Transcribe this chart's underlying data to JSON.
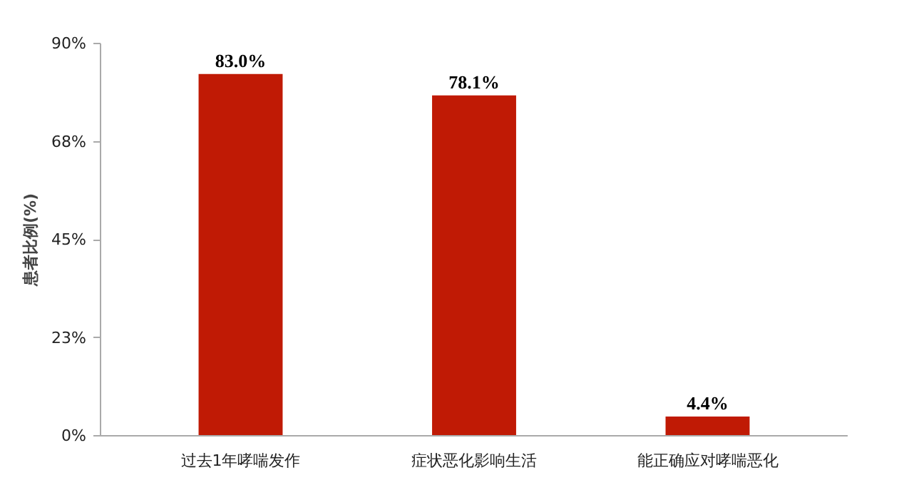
{
  "chart_data": {
    "type": "bar",
    "ylabel": "患者比例(%)",
    "categories": [
      "过去1年哮喘发作",
      "症状恶化影响生活",
      "能正确应对哮喘恶化"
    ],
    "values": [
      83.0,
      78.1,
      4.4
    ],
    "color": "#c01a05",
    "value_labels": [
      "83.0%",
      "78.1%",
      "4.4%"
    ],
    "ylim": [
      0,
      90
    ],
    "yticks": [
      {
        "value": 0,
        "label": "0%"
      },
      {
        "value": 22.5,
        "label": "23%"
      },
      {
        "value": 45,
        "label": "45%"
      },
      {
        "value": 67.5,
        "label": "68%"
      },
      {
        "value": 90,
        "label": "90%"
      }
    ],
    "grid": false
  }
}
